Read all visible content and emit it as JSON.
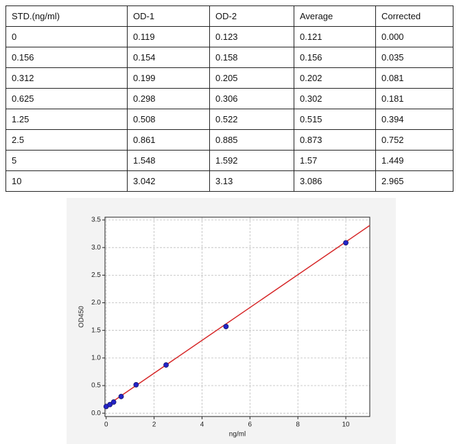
{
  "table": {
    "header": [
      "STD.(ng/ml)",
      "OD-1",
      "OD-2",
      "Average",
      "Corrected"
    ],
    "rows": [
      [
        "0",
        "0.119",
        "0.123",
        "0.121",
        "0.000"
      ],
      [
        "0.156",
        "0.154",
        "0.158",
        "0.156",
        "0.035"
      ],
      [
        "0.312",
        "0.199",
        "0.205",
        "0.202",
        "0.081"
      ],
      [
        "0.625",
        "0.298",
        "0.306",
        "0.302",
        "0.181"
      ],
      [
        "1.25",
        "0.508",
        "0.522",
        "0.515",
        "0.394"
      ],
      [
        "2.5",
        "0.861",
        "0.885",
        "0.873",
        "0.752"
      ],
      [
        "5",
        "1.548",
        "1.592",
        "1.57",
        "1.449"
      ],
      [
        "10",
        "3.042",
        "3.13",
        "3.086",
        "2.965"
      ]
    ]
  },
  "chart_data": {
    "type": "scatter",
    "xlabel": "ng/ml",
    "ylabel": "OD450",
    "series": [
      {
        "color": "#2323c8",
        "x": [
          0,
          0.156,
          0.312,
          0.625,
          1.25,
          2.5,
          5,
          10
        ],
        "values": [
          0.121,
          0.156,
          0.202,
          0.302,
          0.515,
          0.873,
          1.57,
          3.086
        ]
      }
    ],
    "lines": [
      {
        "color": "#d62728",
        "x": [
          0,
          11
        ],
        "values": [
          0.13,
          3.4
        ]
      }
    ],
    "xlim": [
      -0.05,
      11
    ],
    "ylim": [
      -0.06,
      3.55
    ],
    "xticks": [
      0,
      2,
      4,
      6,
      8,
      10
    ],
    "yticks": [
      {
        "value": 0,
        "label": "0.0"
      },
      0.5,
      {
        "value": 1,
        "label": "1.0"
      },
      1.5,
      {
        "value": 2,
        "label": "2.0"
      },
      2.5,
      {
        "value": 3,
        "label": "3.0"
      },
      3.5
    ],
    "grid": true
  }
}
